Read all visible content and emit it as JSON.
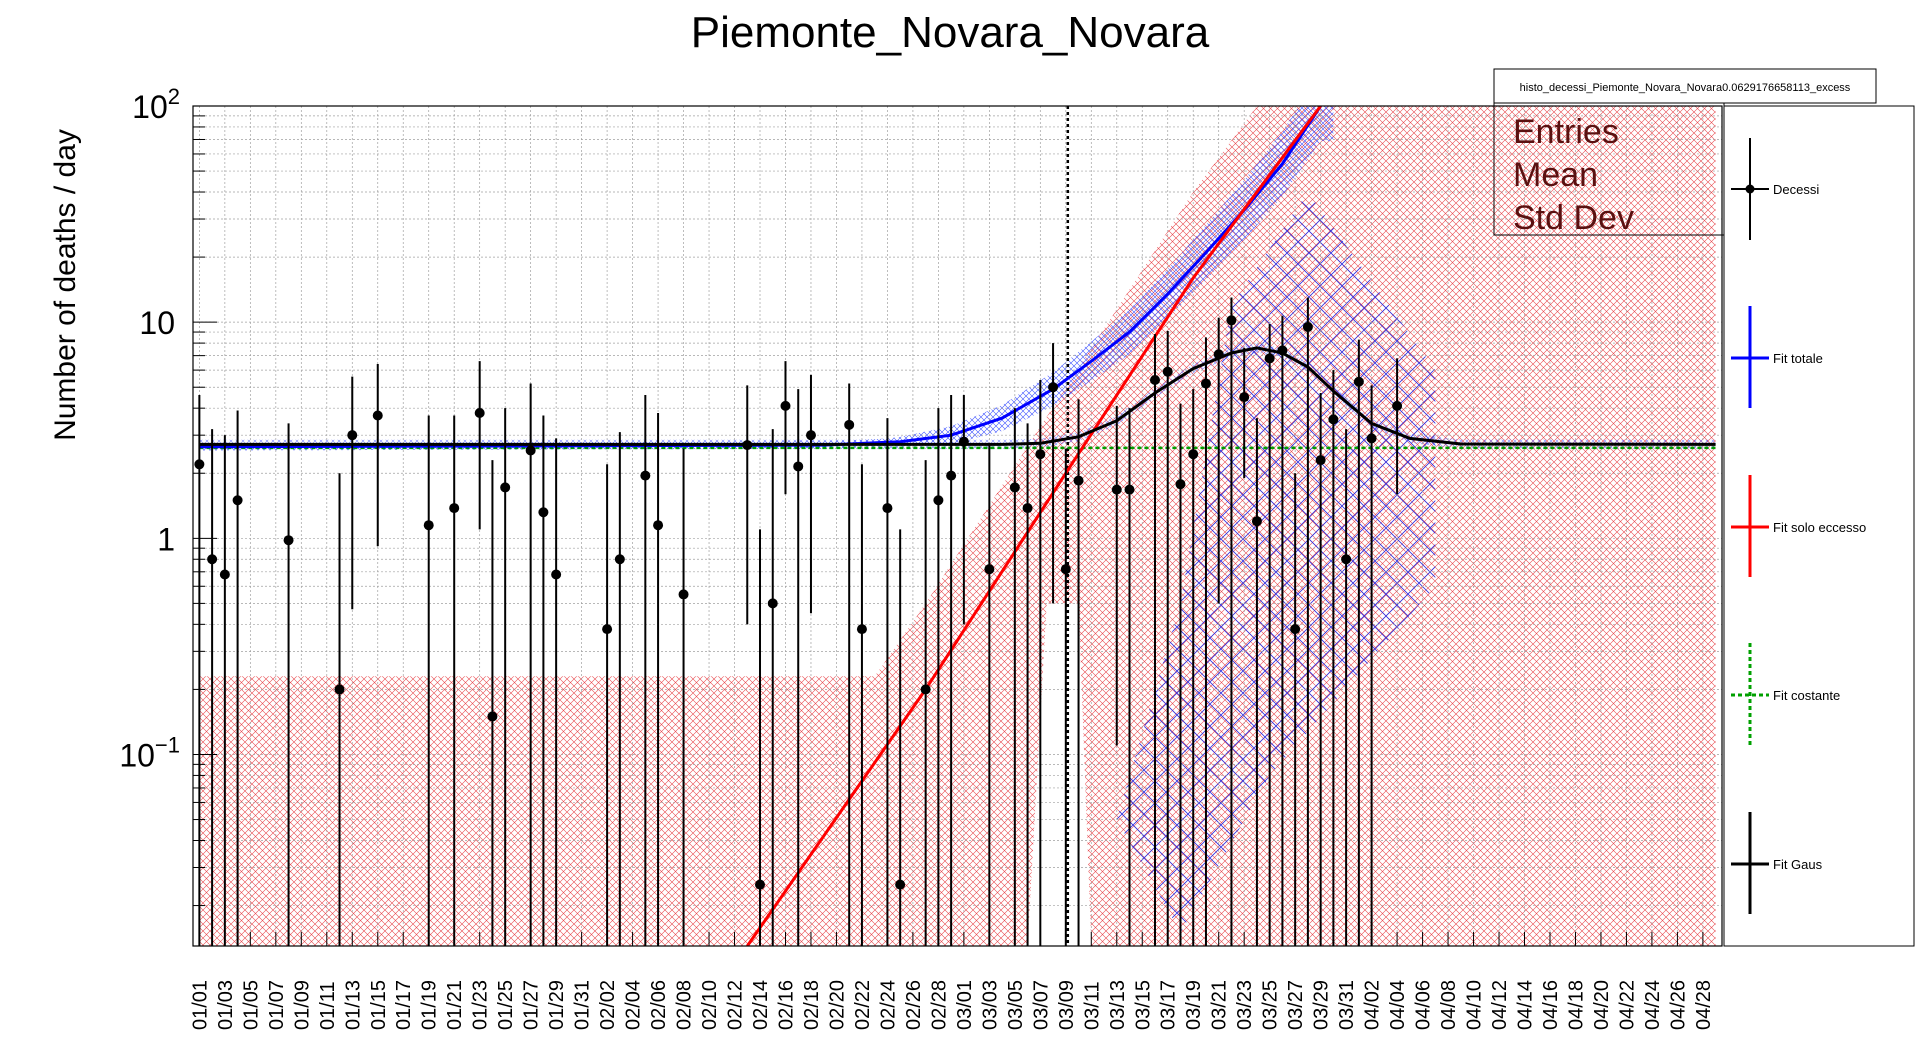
{
  "chart_data": {
    "type": "scatter",
    "title": "Piemonte_Novara_Novara",
    "ylabel": "Number of deaths / day",
    "xlabel": "",
    "y_scale": "log",
    "ylim": [
      0.013,
      100
    ],
    "grid": true,
    "x_day_range": [
      1,
      120
    ],
    "y_ticks": [
      {
        "value": 100,
        "base": "10",
        "exp": "2"
      },
      {
        "value": 10,
        "base": "10",
        "exp": ""
      },
      {
        "value": 1,
        "base": "1",
        "exp": ""
      },
      {
        "value": 0.1,
        "base": "10",
        "exp": "−1"
      }
    ],
    "x_tick_labels": [
      "01/01",
      "01/03",
      "01/05",
      "01/07",
      "01/09",
      "01/11",
      "01/13",
      "01/15",
      "01/17",
      "01/19",
      "01/21",
      "01/23",
      "01/25",
      "01/27",
      "01/29",
      "01/31",
      "02/02",
      "02/04",
      "02/06",
      "02/08",
      "02/10",
      "02/12",
      "02/14",
      "02/16",
      "02/18",
      "02/20",
      "02/22",
      "02/24",
      "02/26",
      "02/28",
      "03/01",
      "03/03",
      "03/05",
      "03/07",
      "03/09",
      "03/11",
      "03/13",
      "03/15",
      "03/17",
      "03/19",
      "03/21",
      "03/23",
      "03/25",
      "03/27",
      "03/29",
      "03/31",
      "04/02",
      "04/04",
      "04/06",
      "04/08",
      "04/10",
      "04/12",
      "04/14",
      "04/16",
      "04/18",
      "04/20",
      "04/22",
      "04/24",
      "04/26",
      "04/28"
    ],
    "vertical_marker_day": 69,
    "stats_box": {
      "name": "histo_decessi_Piemonte_Novara_Novara0.0629176658113_excess",
      "rows": [
        "Entries",
        "Mean",
        "Std Dev"
      ]
    },
    "legend": {
      "position": "right",
      "entries": [
        {
          "label": "Decessi",
          "color": "#000000",
          "style": "points"
        },
        {
          "label": "Fit totale",
          "color": "#0000ff",
          "style": "line"
        },
        {
          "label": "Fit solo eccesso",
          "color": "#ff0000",
          "style": "line"
        },
        {
          "label": "Fit costante",
          "color": "#00a000",
          "style": "dashed"
        },
        {
          "label": "Fit Gaus",
          "color": "#000000",
          "style": "line"
        }
      ]
    },
    "series": [
      {
        "name": "Decessi",
        "points": [
          {
            "day": 1,
            "y": 2.2,
            "lo": 0.013,
            "hi": 4.6
          },
          {
            "day": 2,
            "y": 0.8,
            "lo": 0.013,
            "hi": 3.2
          },
          {
            "day": 3,
            "y": 0.68,
            "lo": 0.013,
            "hi": 3.0
          },
          {
            "day": 4,
            "y": 1.5,
            "lo": 0.013,
            "hi": 3.9
          },
          {
            "day": 8,
            "y": 0.98,
            "lo": 0.013,
            "hi": 3.4
          },
          {
            "day": 12,
            "y": 0.2,
            "lo": 0.013,
            "hi": 2.0
          },
          {
            "day": 13,
            "y": 3.0,
            "lo": 0.47,
            "hi": 5.6
          },
          {
            "day": 15,
            "y": 3.7,
            "lo": 0.92,
            "hi": 6.4
          },
          {
            "day": 19,
            "y": 1.15,
            "lo": 0.013,
            "hi": 3.7
          },
          {
            "day": 21,
            "y": 1.38,
            "lo": 0.013,
            "hi": 3.7
          },
          {
            "day": 23,
            "y": 3.8,
            "lo": 1.1,
            "hi": 6.6
          },
          {
            "day": 24,
            "y": 0.15,
            "lo": 0.013,
            "hi": 2.3
          },
          {
            "day": 25,
            "y": 1.72,
            "lo": 0.013,
            "hi": 4.0
          },
          {
            "day": 27,
            "y": 2.55,
            "lo": 0.013,
            "hi": 5.2
          },
          {
            "day": 28,
            "y": 1.32,
            "lo": 0.013,
            "hi": 3.7
          },
          {
            "day": 29,
            "y": 0.68,
            "lo": 0.013,
            "hi": 2.9
          },
          {
            "day": 33,
            "y": 0.38,
            "lo": 0.013,
            "hi": 2.2
          },
          {
            "day": 34,
            "y": 0.8,
            "lo": 0.013,
            "hi": 3.1
          },
          {
            "day": 36,
            "y": 1.95,
            "lo": 0.013,
            "hi": 4.6
          },
          {
            "day": 37,
            "y": 1.15,
            "lo": 0.013,
            "hi": 3.8
          },
          {
            "day": 39,
            "y": 0.55,
            "lo": 0.013,
            "hi": 2.6
          },
          {
            "day": 44,
            "y": 2.7,
            "lo": 0.4,
            "hi": 5.1
          },
          {
            "day": 45,
            "y": 0.025,
            "lo": 0.013,
            "hi": 1.1
          },
          {
            "day": 46,
            "y": 0.5,
            "lo": 0.013,
            "hi": 3.2
          },
          {
            "day": 47,
            "y": 4.1,
            "lo": 1.6,
            "hi": 6.6
          },
          {
            "day": 48,
            "y": 2.15,
            "lo": 0.013,
            "hi": 4.9
          },
          {
            "day": 49,
            "y": 3.0,
            "lo": 0.45,
            "hi": 5.7
          },
          {
            "day": 52,
            "y": 3.35,
            "lo": 0.013,
            "hi": 5.2
          },
          {
            "day": 53,
            "y": 0.38,
            "lo": 0.013,
            "hi": 2.2
          },
          {
            "day": 55,
            "y": 1.38,
            "lo": 0.013,
            "hi": 3.6
          },
          {
            "day": 56,
            "y": 0.025,
            "lo": 0.013,
            "hi": 1.1
          },
          {
            "day": 58,
            "y": 0.2,
            "lo": 0.013,
            "hi": 2.3
          },
          {
            "day": 59,
            "y": 1.5,
            "lo": 0.013,
            "hi": 4.0
          },
          {
            "day": 60,
            "y": 1.95,
            "lo": 0.013,
            "hi": 4.6
          },
          {
            "day": 61,
            "y": 2.8,
            "lo": 0.4,
            "hi": 4.6
          },
          {
            "day": 63,
            "y": 0.72,
            "lo": 0.013,
            "hi": 2.7
          },
          {
            "day": 65,
            "y": 1.72,
            "lo": 0.013,
            "hi": 4.0
          },
          {
            "day": 66,
            "y": 1.38,
            "lo": 0.013,
            "hi": 3.4
          },
          {
            "day": 67,
            "y": 2.45,
            "lo": 0.013,
            "hi": 5.4
          },
          {
            "day": 68,
            "y": 5.0,
            "lo": 0.5,
            "hi": 8.0
          },
          {
            "day": 69,
            "y": 0.72,
            "lo": 0.013,
            "hi": 2.6
          },
          {
            "day": 70,
            "y": 1.85,
            "lo": 0.013,
            "hi": 4.4
          },
          {
            "day": 73,
            "y": 1.68,
            "lo": 0.11,
            "hi": 4.1
          },
          {
            "day": 74,
            "y": 1.68,
            "lo": 0.013,
            "hi": 4.0
          },
          {
            "day": 76,
            "y": 5.4,
            "lo": 0.013,
            "hi": 8.8
          },
          {
            "day": 77,
            "y": 5.9,
            "lo": 0.013,
            "hi": 9.1
          },
          {
            "day": 78,
            "y": 1.78,
            "lo": 0.013,
            "hi": 4.2
          },
          {
            "day": 79,
            "y": 2.45,
            "lo": 0.013,
            "hi": 4.9
          },
          {
            "day": 80,
            "y": 5.2,
            "lo": 0.013,
            "hi": 8.5
          },
          {
            "day": 81,
            "y": 7.1,
            "lo": 0.5,
            "hi": 10.5
          },
          {
            "day": 82,
            "y": 10.2,
            "lo": 0.013,
            "hi": 13.0
          },
          {
            "day": 83,
            "y": 4.5,
            "lo": 1.9,
            "hi": 7.6
          },
          {
            "day": 84,
            "y": 1.2,
            "lo": 0.013,
            "hi": 3.6
          },
          {
            "day": 85,
            "y": 6.8,
            "lo": 0.013,
            "hi": 9.8
          },
          {
            "day": 86,
            "y": 7.4,
            "lo": 0.013,
            "hi": 10.7
          },
          {
            "day": 87,
            "y": 0.38,
            "lo": 0.013,
            "hi": 2.0
          },
          {
            "day": 88,
            "y": 9.5,
            "lo": 0.013,
            "hi": 13.0
          },
          {
            "day": 89,
            "y": 2.3,
            "lo": 0.013,
            "hi": 4.7
          },
          {
            "day": 90,
            "y": 3.55,
            "lo": 0.013,
            "hi": 6.0
          },
          {
            "day": 91,
            "y": 0.8,
            "lo": 0.013,
            "hi": 3.2
          },
          {
            "day": 92,
            "y": 5.3,
            "lo": 0.013,
            "hi": 8.3
          },
          {
            "day": 93,
            "y": 2.9,
            "lo": 0.013,
            "hi": 5.1
          },
          {
            "day": 95,
            "y": 4.1,
            "lo": 1.6,
            "hi": 6.8
          }
        ]
      },
      {
        "name": "Fit costante",
        "constant": 2.62,
        "points": [
          {
            "day": 1,
            "y": 2.62
          },
          {
            "day": 120,
            "y": 2.62
          }
        ]
      },
      {
        "name": "Fit solo eccesso",
        "points": [
          {
            "day": 44,
            "y": 0.013
          },
          {
            "day": 58,
            "y": 0.2
          },
          {
            "day": 69,
            "y": 2.0
          },
          {
            "day": 79,
            "y": 16.0
          },
          {
            "day": 89,
            "y": 100
          }
        ]
      },
      {
        "name": "Fit totale",
        "points": [
          {
            "day": 1,
            "y": 2.65
          },
          {
            "day": 50,
            "y": 2.7
          },
          {
            "day": 56,
            "y": 2.8
          },
          {
            "day": 60,
            "y": 3.0
          },
          {
            "day": 64,
            "y": 3.6
          },
          {
            "day": 68,
            "y": 4.9
          },
          {
            "day": 71,
            "y": 6.6
          },
          {
            "day": 74,
            "y": 9.0
          },
          {
            "day": 77,
            "y": 13.5
          },
          {
            "day": 80,
            "y": 21.0
          },
          {
            "day": 83,
            "y": 33.0
          },
          {
            "day": 86,
            "y": 54.0
          },
          {
            "day": 89,
            "y": 100
          }
        ]
      },
      {
        "name": "Fit Gaus",
        "points": [
          {
            "day": 1,
            "y": 2.72
          },
          {
            "day": 64,
            "y": 2.72
          },
          {
            "day": 67,
            "y": 2.75
          },
          {
            "day": 70,
            "y": 2.95
          },
          {
            "day": 73,
            "y": 3.5
          },
          {
            "day": 76,
            "y": 4.7
          },
          {
            "day": 79,
            "y": 6.1
          },
          {
            "day": 82,
            "y": 7.2
          },
          {
            "day": 84,
            "y": 7.6
          },
          {
            "day": 86,
            "y": 7.2
          },
          {
            "day": 88,
            "y": 6.2
          },
          {
            "day": 90,
            "y": 4.8
          },
          {
            "day": 93,
            "y": 3.4
          },
          {
            "day": 96,
            "y": 2.9
          },
          {
            "day": 100,
            "y": 2.73
          },
          {
            "day": 120,
            "y": 2.72
          }
        ]
      }
    ]
  }
}
